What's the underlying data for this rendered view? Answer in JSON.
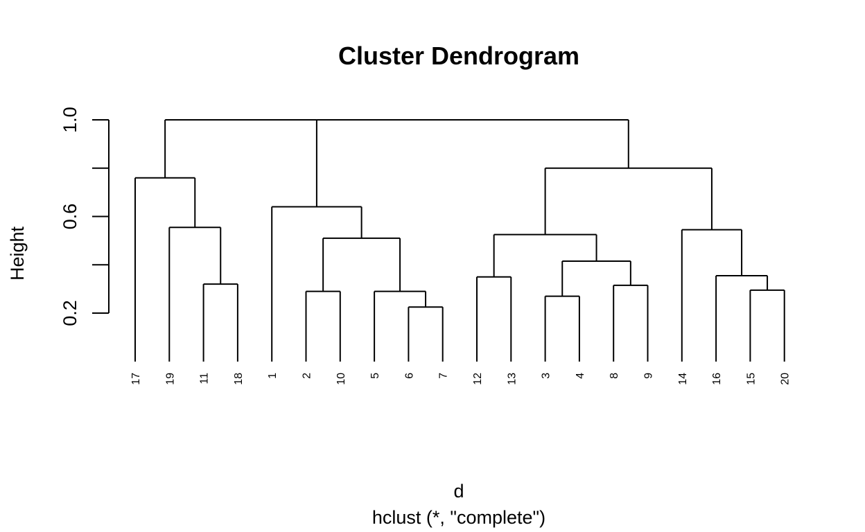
{
  "chart_data": {
    "type": "dendrogram",
    "title": "Cluster Dendrogram",
    "ylabel": "Height",
    "xlabel": "d",
    "sub": "hclust (*, \"complete\")",
    "y_ticks": [
      0.2,
      0.4,
      0.6,
      0.8,
      1.0
    ],
    "y_tick_labels": [
      "0.2",
      "",
      "0.6",
      "",
      "1.0"
    ],
    "ylim": [
      0.2,
      1.0
    ],
    "leaf_order": [
      "17",
      "19",
      "11",
      "18",
      "1",
      "2",
      "10",
      "5",
      "6",
      "7",
      "12",
      "13",
      "3",
      "4",
      "8",
      "9",
      "14",
      "16",
      "15",
      "20"
    ],
    "merges": [
      {
        "left": "11",
        "right": "18",
        "height": 0.32
      },
      {
        "left": "19",
        "right": "m1",
        "height": 0.555
      },
      {
        "left": "17",
        "right": "m2",
        "height": 0.76
      },
      {
        "left": "6",
        "right": "7",
        "height": 0.225
      },
      {
        "left": "5",
        "right": "m4",
        "height": 0.29
      },
      {
        "left": "2",
        "right": "10",
        "height": 0.29
      },
      {
        "left": "m6",
        "right": "m5",
        "height": 0.51
      },
      {
        "left": "1",
        "right": "m7",
        "height": 0.64
      },
      {
        "left": "3",
        "right": "4",
        "height": 0.27
      },
      {
        "left": "8",
        "right": "9",
        "height": 0.315
      },
      {
        "left": "m9",
        "right": "m10",
        "height": 0.415
      },
      {
        "left": "12",
        "right": "13",
        "height": 0.35
      },
      {
        "left": "m12",
        "right": "m11",
        "height": 0.525
      },
      {
        "left": "15",
        "right": "20",
        "height": 0.295
      },
      {
        "left": "16",
        "right": "m14",
        "height": 0.355
      },
      {
        "left": "14",
        "right": "m15",
        "height": 0.545
      },
      {
        "left": "m13",
        "right": "m16",
        "height": 0.8
      },
      {
        "left": "m8",
        "right": "m17",
        "height": 1.0
      },
      {
        "left": "m3",
        "right": "m18",
        "height": 1.0
      }
    ]
  }
}
